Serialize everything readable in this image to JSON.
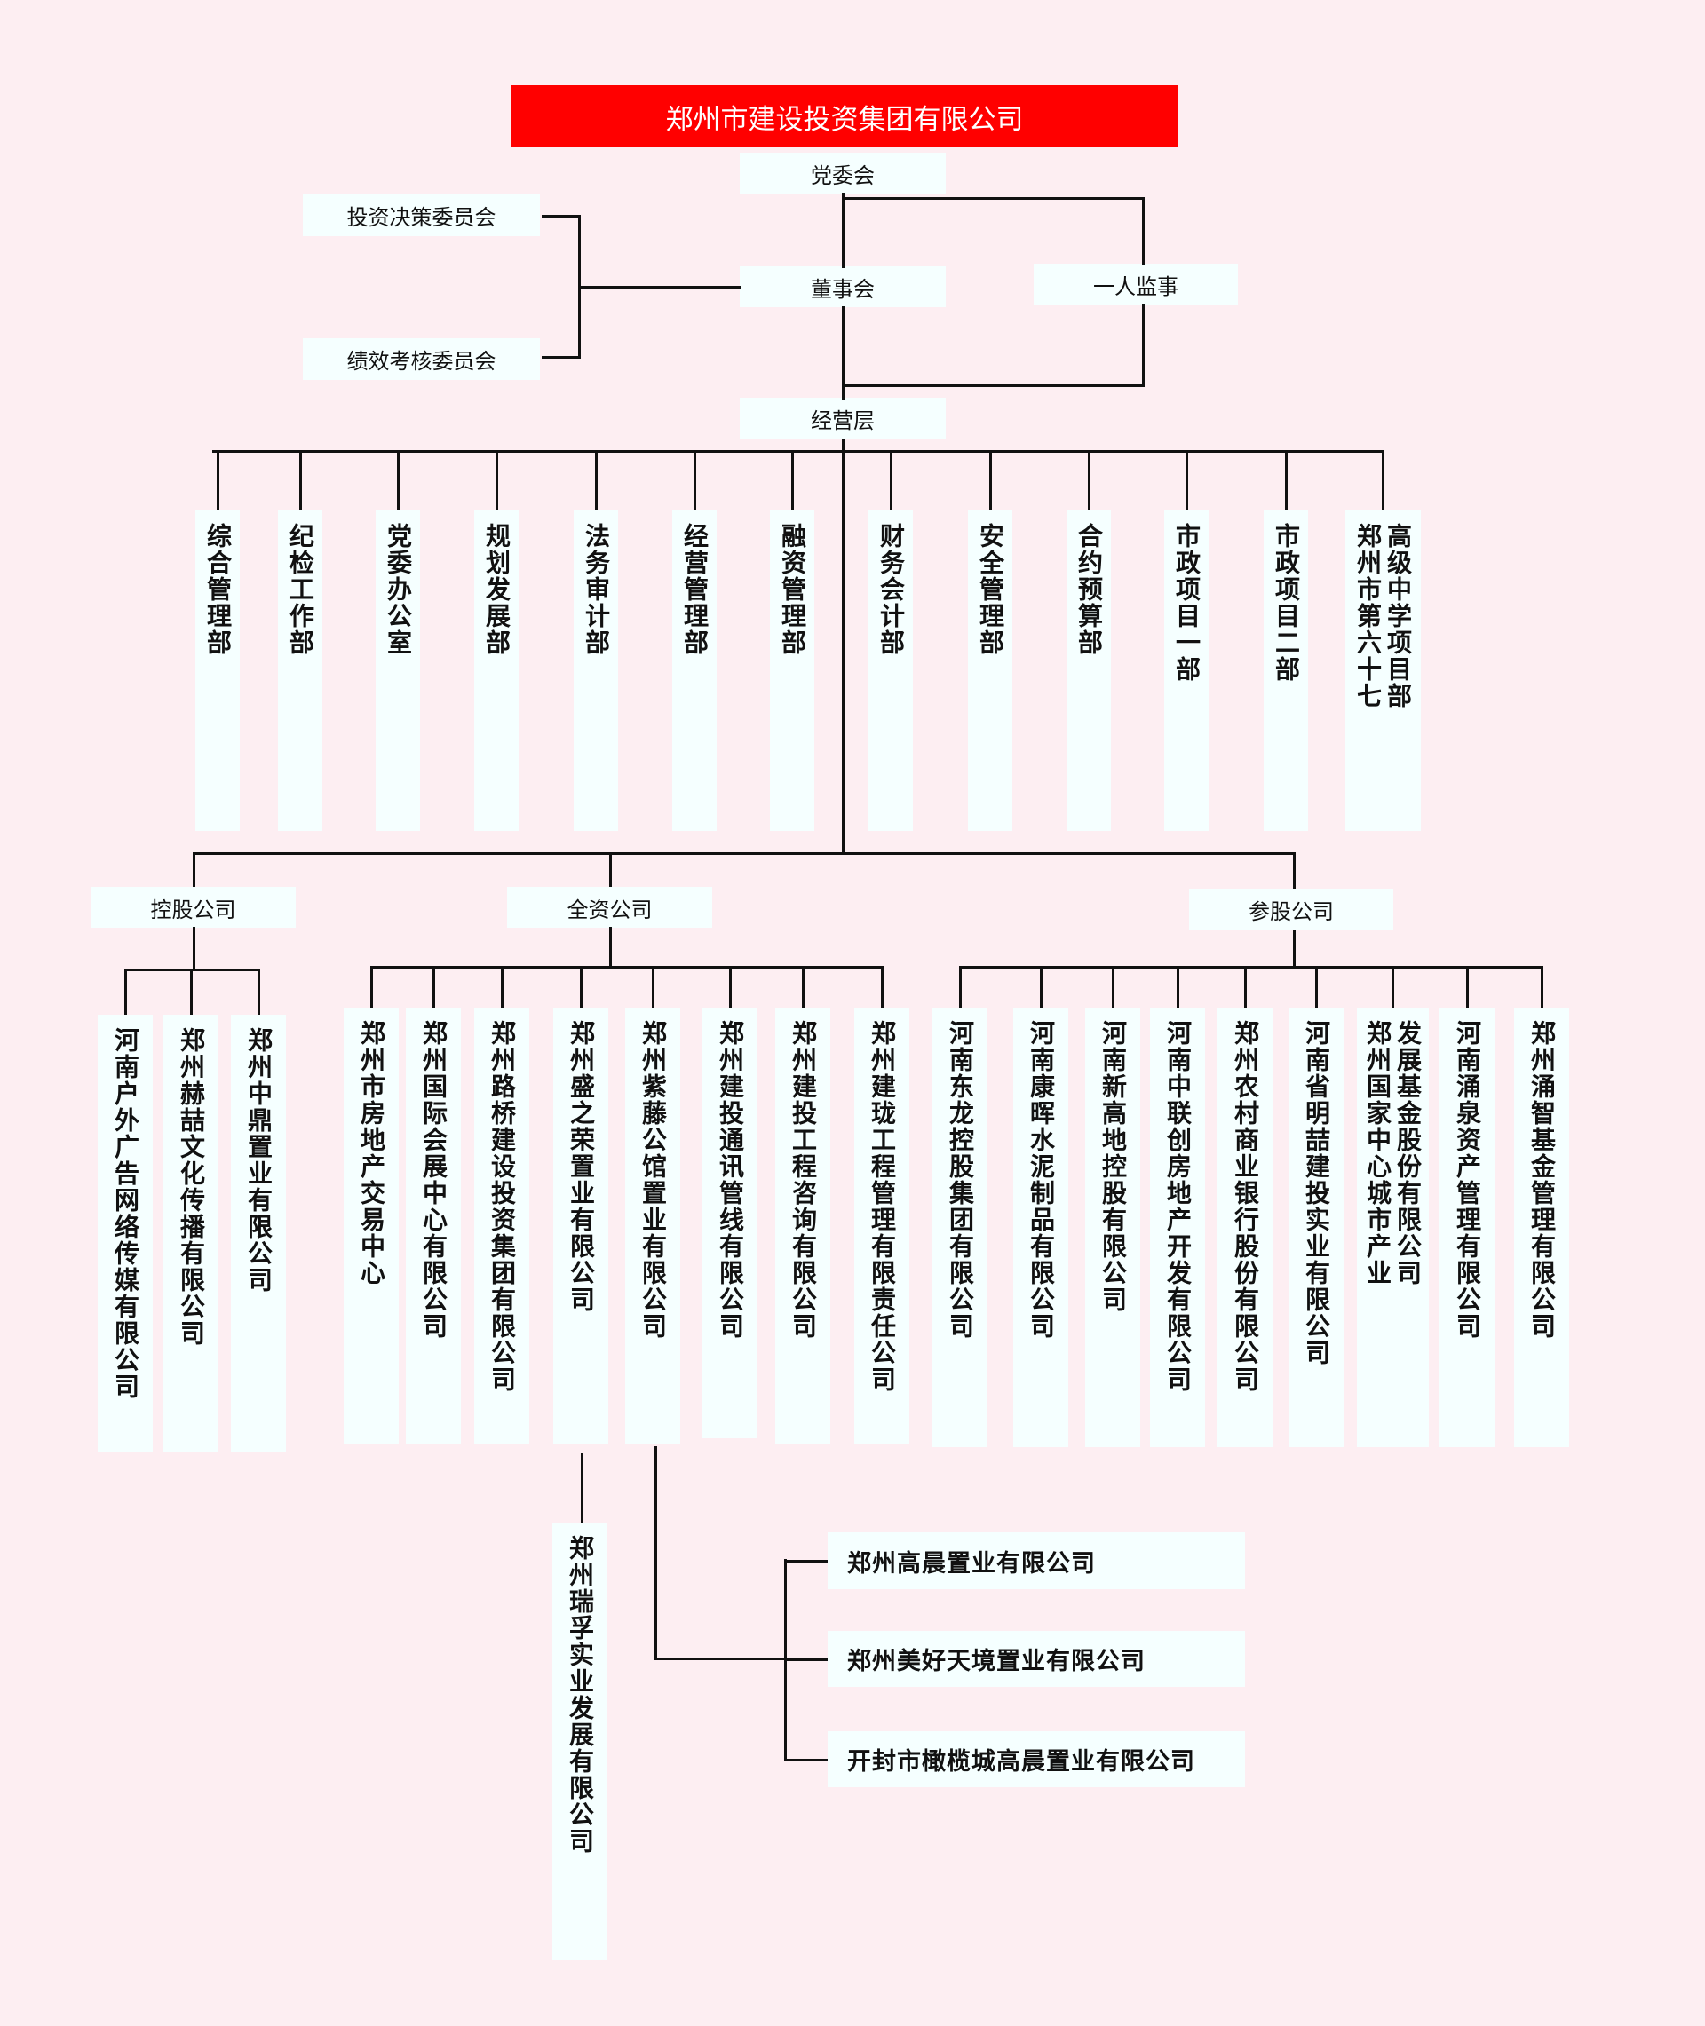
{
  "root": "郑州市建设投资集团有限公司",
  "party_committee": "党委会",
  "board": "董事会",
  "supervisor": "一人监事",
  "committees": [
    "投资决策委员会",
    "绩效考核委员会"
  ],
  "management": "经营层",
  "departments": [
    "综合管理部",
    "纪检工作部",
    "党委办公室",
    "规划发展部",
    "法务审计部",
    "经营管理部",
    "融资管理部",
    "财务会计部",
    "安全管理部",
    "合约预算部",
    "市政项目一部",
    "市政项目二部",
    "郑州市第六十七高级中学项目部"
  ],
  "groups": [
    {
      "label": "控股公司",
      "companies": [
        "河南户外广告网络传媒有限公司",
        "郑州赫喆文化传播有限公司",
        "郑州中鼎置业有限公司"
      ]
    },
    {
      "label": "全资公司",
      "companies": [
        "郑州市房地产交易中心",
        "郑州国际会展中心有限公司",
        "郑州路桥建设投资集团有限公司",
        "郑州盛之荣置业有限公司",
        "郑州紫藤公馆置业有限公司",
        "郑州建投通讯管线有限公司",
        "郑州建投工程咨询有限公司",
        "郑州建珑工程管理有限责任公司"
      ]
    },
    {
      "label": "参股公司",
      "companies": [
        "河南东龙控股集团有限公司",
        "河南康晖水泥制品有限公司",
        "河南新高地控股有限公司",
        "河南中联创房地产开发有限公司",
        "郑州农村商业银行股份有限公司",
        "河南省明喆建投实业有限公司",
        "郑州国家中心城市产业发展基金股份有限公司",
        "河南涌泉资产管理有限公司",
        "郑州涌智基金管理有限公司"
      ]
    }
  ],
  "shengzhirong_sub": "郑州瑞孚实业发展有限公司",
  "zitengsubs": [
    "郑州高晨置业有限公司",
    "郑州美好天境置业有限公司",
    "开封市橄榄城高晨置业有限公司"
  ],
  "colors": {
    "background": "#fdeef2",
    "root": "#ff0000",
    "box": "#f5ffff"
  }
}
